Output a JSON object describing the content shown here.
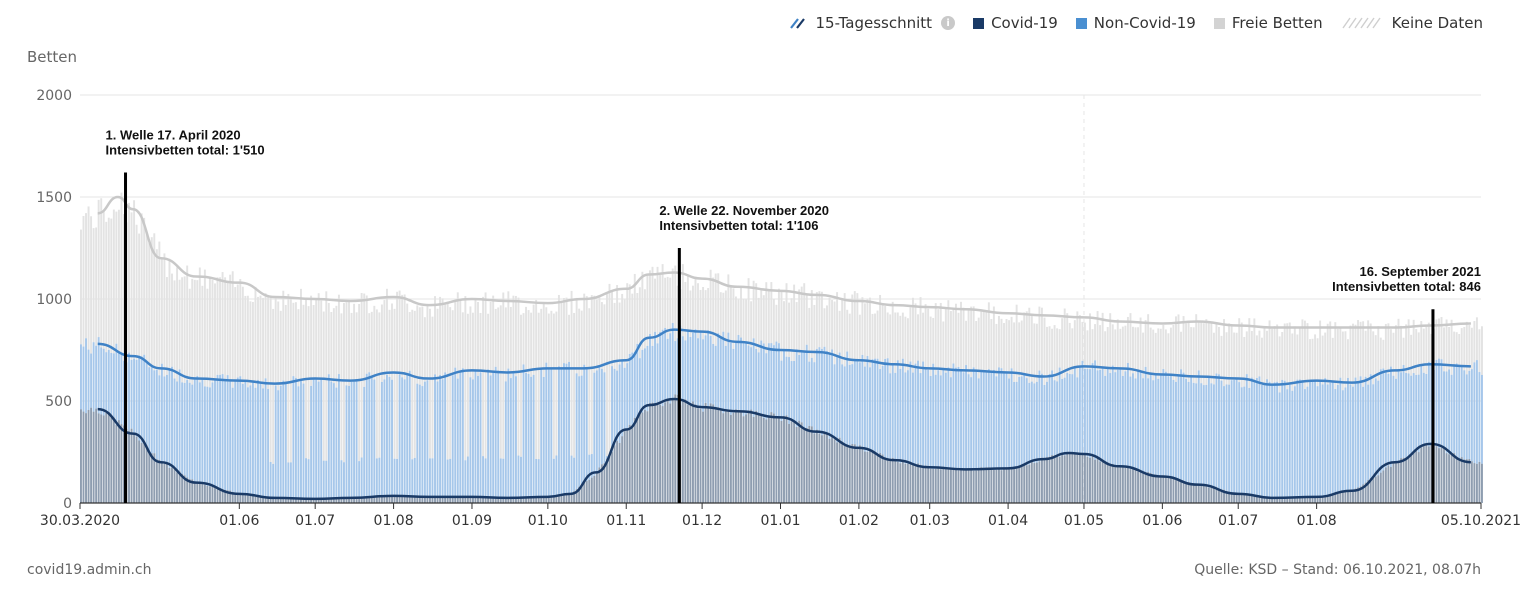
{
  "legend": {
    "avg_label": "15-Tagesschnitt",
    "avg_info_icon": "info-icon",
    "covid_label": "Covid-19",
    "noncovid_label": "Non-Covid-19",
    "free_label": "Freie Betten",
    "nodata_label": "Keine Daten"
  },
  "footer": {
    "source_left": "covid19.admin.ch",
    "source_right": "Quelle: KSD – Stand: 06.10.2021, 08.07h"
  },
  "colors": {
    "covid_fill": "#8e9db0",
    "noncovid_fill": "#a6c7ea",
    "free_fill": "#e3e3e3",
    "covid_line": "#1a3a66",
    "noncovid_line": "#3f82c6",
    "free_line": "#c8c8c8",
    "covid_swatch": "#1a3a66",
    "noncovid_swatch": "#4a8fd1",
    "free_swatch": "#d3d3d3"
  },
  "chart_data": {
    "type": "area",
    "ylabel": "Betten",
    "ylim": [
      0,
      2000
    ],
    "yticks": [
      0,
      500,
      1000,
      1500,
      2000
    ],
    "x_tick_labels": [
      "30.03.2020",
      "01.06",
      "01.07",
      "01.08",
      "01.09",
      "01.10",
      "01.11",
      "01.12",
      "01.01",
      "01.02",
      "01.03",
      "01.04",
      "01.05",
      "01.06",
      "01.07",
      "01.08",
      "05.10.2021"
    ],
    "x_tick_dates": [
      "2020-03-30",
      "2020-06-01",
      "2020-07-01",
      "2020-08-01",
      "2020-09-01",
      "2020-10-01",
      "2020-11-01",
      "2020-12-01",
      "2021-01-01",
      "2021-02-01",
      "2021-03-01",
      "2021-04-01",
      "2021-05-01",
      "2021-06-01",
      "2021-07-01",
      "2021-08-01",
      "2021-10-05"
    ],
    "x_start": "2020-03-30",
    "x_end": "2021-10-05",
    "grid": true,
    "legend_position": "top-right",
    "series": [
      {
        "name": "Covid-19",
        "x": [
          "2020-04-06",
          "2020-04-20",
          "2020-05-01",
          "2020-05-15",
          "2020-06-01",
          "2020-06-15",
          "2020-07-01",
          "2020-07-15",
          "2020-08-01",
          "2020-08-15",
          "2020-09-01",
          "2020-09-15",
          "2020-10-01",
          "2020-10-10",
          "2020-10-20",
          "2020-11-01",
          "2020-11-10",
          "2020-11-20",
          "2020-12-01",
          "2020-12-15",
          "2021-01-01",
          "2021-01-15",
          "2021-02-01",
          "2021-02-15",
          "2021-03-01",
          "2021-03-15",
          "2021-04-01",
          "2021-04-15",
          "2021-04-25",
          "2021-05-01",
          "2021-05-15",
          "2021-06-01",
          "2021-06-15",
          "2021-07-01",
          "2021-07-15",
          "2021-08-01",
          "2021-08-15",
          "2021-09-01",
          "2021-09-15",
          "2021-10-01"
        ],
        "values": [
          460,
          340,
          200,
          100,
          45,
          25,
          20,
          25,
          35,
          30,
          30,
          25,
          30,
          45,
          150,
          360,
          480,
          510,
          470,
          450,
          420,
          350,
          270,
          210,
          175,
          165,
          170,
          215,
          245,
          240,
          180,
          130,
          90,
          45,
          25,
          30,
          60,
          200,
          290,
          200
        ]
      },
      {
        "name": "Non-Covid-19",
        "x": [
          "2020-04-06",
          "2020-04-20",
          "2020-05-01",
          "2020-05-15",
          "2020-06-01",
          "2020-06-15",
          "2020-07-01",
          "2020-07-15",
          "2020-08-01",
          "2020-08-15",
          "2020-09-01",
          "2020-09-15",
          "2020-10-01",
          "2020-10-15",
          "2020-11-01",
          "2020-11-10",
          "2020-11-20",
          "2020-12-01",
          "2020-12-15",
          "2021-01-01",
          "2021-01-15",
          "2021-02-01",
          "2021-02-15",
          "2021-03-01",
          "2021-03-15",
          "2021-04-01",
          "2021-04-15",
          "2021-05-01",
          "2021-05-15",
          "2021-06-01",
          "2021-06-15",
          "2021-07-01",
          "2021-07-15",
          "2021-08-01",
          "2021-08-15",
          "2021-09-01",
          "2021-09-15",
          "2021-10-01"
        ],
        "values": [
          780,
          720,
          660,
          610,
          600,
          585,
          610,
          600,
          640,
          610,
          650,
          640,
          660,
          660,
          700,
          810,
          850,
          840,
          790,
          750,
          740,
          700,
          680,
          660,
          650,
          640,
          620,
          670,
          660,
          630,
          620,
          610,
          580,
          600,
          590,
          650,
          680,
          670
        ]
      },
      {
        "name": "Freie Betten",
        "x": [
          "2020-04-06",
          "2020-04-14",
          "2020-04-20",
          "2020-05-01",
          "2020-05-15",
          "2020-06-01",
          "2020-06-15",
          "2020-07-01",
          "2020-07-15",
          "2020-08-01",
          "2020-08-15",
          "2020-09-01",
          "2020-09-15",
          "2020-10-01",
          "2020-10-15",
          "2020-11-01",
          "2020-11-10",
          "2020-11-20",
          "2020-12-01",
          "2020-12-15",
          "2021-01-01",
          "2021-01-15",
          "2021-02-01",
          "2021-02-15",
          "2021-03-01",
          "2021-03-15",
          "2021-04-01",
          "2021-04-15",
          "2021-05-01",
          "2021-05-15",
          "2021-06-01",
          "2021-06-15",
          "2021-07-01",
          "2021-07-15",
          "2021-08-01",
          "2021-08-15",
          "2021-09-01",
          "2021-09-15",
          "2021-10-01"
        ],
        "values": [
          1420,
          1500,
          1440,
          1200,
          1110,
          1080,
          1010,
          1000,
          990,
          1010,
          970,
          1000,
          990,
          980,
          1000,
          1050,
          1120,
          1130,
          1100,
          1060,
          1040,
          1020,
          990,
          970,
          960,
          950,
          930,
          920,
          910,
          890,
          880,
          890,
          870,
          860,
          860,
          860,
          860,
          870,
          880
        ]
      }
    ],
    "annotations": [
      {
        "date": "2020-04-17",
        "line1": "1. Welle 17. April 2020",
        "line2": "Intensivbetten total: 1'510",
        "top_value": 1620
      },
      {
        "date": "2020-11-22",
        "line1": "2. Welle 22. November 2020",
        "line2": "Intensivbetten total: 1'106",
        "top_value": 1250
      },
      {
        "date": "2021-09-16",
        "line1": "16. September 2021",
        "line2": "Intensivbetten total: 846",
        "top_value": 950
      }
    ]
  }
}
